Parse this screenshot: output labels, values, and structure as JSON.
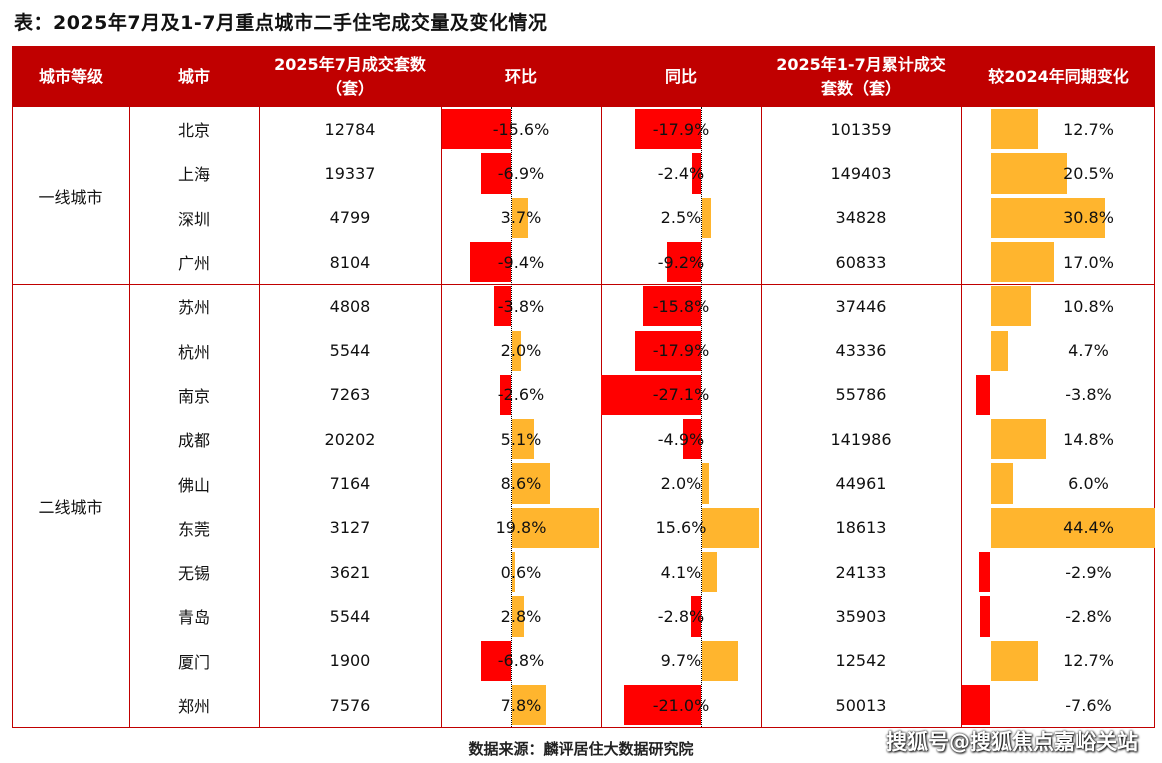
{
  "title": "表：2025年7月及1-7月重点城市二手住宅成交量及变化情况",
  "colors": {
    "header": "#c00000",
    "negative": "#ff0000",
    "positive": "#ffb52e"
  },
  "chart_data": {
    "type": "table",
    "columns": [
      "城市等级",
      "城市",
      "2025年7月成交套数（套）",
      "环比",
      "同比",
      "2025年1-7月累计成交套数（套）",
      "较2024年同期变化"
    ],
    "tiers": [
      {
        "label": "一线城市",
        "rows": 4
      },
      {
        "label": "二线城市",
        "rows": 10
      }
    ],
    "rows": [
      {
        "city": "北京",
        "vol": "12784",
        "mom": -15.6,
        "yoy": -17.9,
        "cum": "101359",
        "chg": 12.7
      },
      {
        "city": "上海",
        "vol": "19337",
        "mom": -6.9,
        "yoy": -2.4,
        "cum": "149403",
        "chg": 20.5
      },
      {
        "city": "深圳",
        "vol": "4799",
        "mom": 3.7,
        "yoy": 2.5,
        "cum": "34828",
        "chg": 30.8
      },
      {
        "city": "广州",
        "vol": "8104",
        "mom": -9.4,
        "yoy": -9.2,
        "cum": "60833",
        "chg": 17.0
      },
      {
        "city": "苏州",
        "vol": "4808",
        "mom": -3.8,
        "yoy": -15.8,
        "cum": "37446",
        "chg": 10.8
      },
      {
        "city": "杭州",
        "vol": "5544",
        "mom": 2.0,
        "yoy": -17.9,
        "cum": "43336",
        "chg": 4.7
      },
      {
        "city": "南京",
        "vol": "7263",
        "mom": -2.6,
        "yoy": -27.1,
        "cum": "55786",
        "chg": -3.8
      },
      {
        "city": "成都",
        "vol": "20202",
        "mom": 5.1,
        "yoy": -4.9,
        "cum": "141986",
        "chg": 14.8
      },
      {
        "city": "佛山",
        "vol": "7164",
        "mom": 8.6,
        "yoy": 2.0,
        "cum": "44961",
        "chg": 6.0
      },
      {
        "city": "东莞",
        "vol": "3127",
        "mom": 19.8,
        "yoy": 15.6,
        "cum": "18613",
        "chg": 44.4
      },
      {
        "city": "无锡",
        "vol": "3621",
        "mom": 0.6,
        "yoy": 4.1,
        "cum": "24133",
        "chg": -2.9
      },
      {
        "city": "青岛",
        "vol": "5544",
        "mom": 2.8,
        "yoy": -2.8,
        "cum": "35903",
        "chg": -2.8
      },
      {
        "city": "厦门",
        "vol": "1900",
        "mom": -6.8,
        "yoy": 9.7,
        "cum": "12542",
        "chg": 12.7
      },
      {
        "city": "郑州",
        "vol": "7576",
        "mom": 7.8,
        "yoy": -21.0,
        "cum": "50013",
        "chg": -7.6
      }
    ]
  },
  "source": "数据来源：麟评居住大数据研究院",
  "watermark": "搜狐号@搜狐焦点嘉峪关站"
}
